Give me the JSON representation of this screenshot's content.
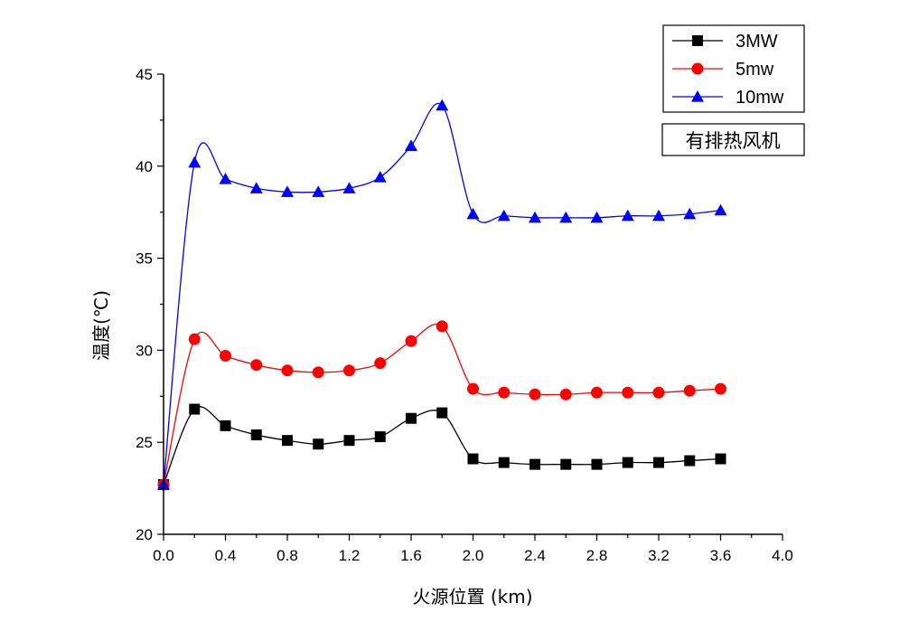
{
  "chart_data": {
    "type": "line",
    "title": "",
    "xlabel": "火源位置 (km)",
    "ylabel": "温度(℃)",
    "xlim": [
      0.0,
      4.0
    ],
    "ylim": [
      20,
      45
    ],
    "xticks": [
      "0.0",
      "0.4",
      "0.8",
      "1.2",
      "1.6",
      "2.0",
      "2.4",
      "2.8",
      "3.2",
      "3.6",
      "4.0"
    ],
    "yticks": [
      "20",
      "25",
      "30",
      "35",
      "40",
      "45"
    ],
    "grid": false,
    "legend_position": "top-right",
    "annotation": "有排热风机",
    "x": [
      0.0,
      0.2,
      0.4,
      0.6,
      0.8,
      1.0,
      1.2,
      1.4,
      1.6,
      1.8,
      2.0,
      2.2,
      2.4,
      2.6,
      2.8,
      3.0,
      3.2,
      3.4,
      3.6
    ],
    "series": [
      {
        "name": "3MW",
        "color": "#000000",
        "marker": "square",
        "values": [
          22.7,
          26.8,
          25.9,
          25.4,
          25.1,
          24.9,
          25.1,
          25.3,
          26.3,
          26.6,
          24.1,
          23.9,
          23.8,
          23.8,
          23.8,
          23.9,
          23.9,
          24.0,
          24.1
        ]
      },
      {
        "name": "5mw",
        "color": "#ff0000",
        "marker": "circle",
        "values": [
          22.7,
          30.6,
          29.7,
          29.2,
          28.9,
          28.8,
          28.9,
          29.3,
          30.5,
          31.3,
          27.9,
          27.7,
          27.6,
          27.6,
          27.7,
          27.7,
          27.7,
          27.8,
          27.9
        ]
      },
      {
        "name": "10mw",
        "color": "#0000ff",
        "marker": "triangle",
        "values": [
          22.7,
          40.2,
          39.3,
          38.8,
          38.6,
          38.6,
          38.8,
          39.4,
          41.1,
          43.3,
          37.4,
          37.3,
          37.2,
          37.2,
          37.2,
          37.3,
          37.3,
          37.4,
          37.6
        ]
      }
    ]
  }
}
